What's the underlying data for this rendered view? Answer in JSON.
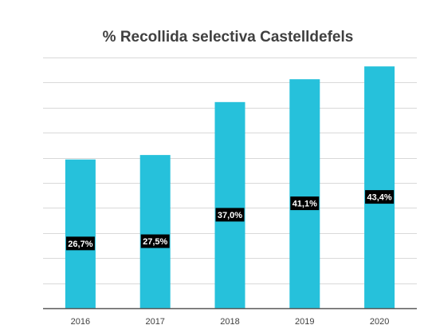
{
  "chart_data": {
    "type": "bar",
    "title": "% Recollida selectiva Castelldefels",
    "categories": [
      "2016",
      "2017",
      "2018",
      "2019",
      "2020"
    ],
    "values": [
      26.7,
      27.5,
      37.0,
      41.1,
      43.4
    ],
    "data_labels": [
      "26,7%",
      "27,5%",
      "37,0%",
      "41,1%",
      "43,4%"
    ],
    "ylim": [
      0,
      45
    ],
    "grid": true,
    "legend": "none",
    "colors": {
      "bar": "#26C1DB",
      "label_bg": "#000000",
      "label_text": "#ffffff",
      "grid": "#d9d9d9",
      "axis": "#595959",
      "title": "#404040"
    }
  }
}
